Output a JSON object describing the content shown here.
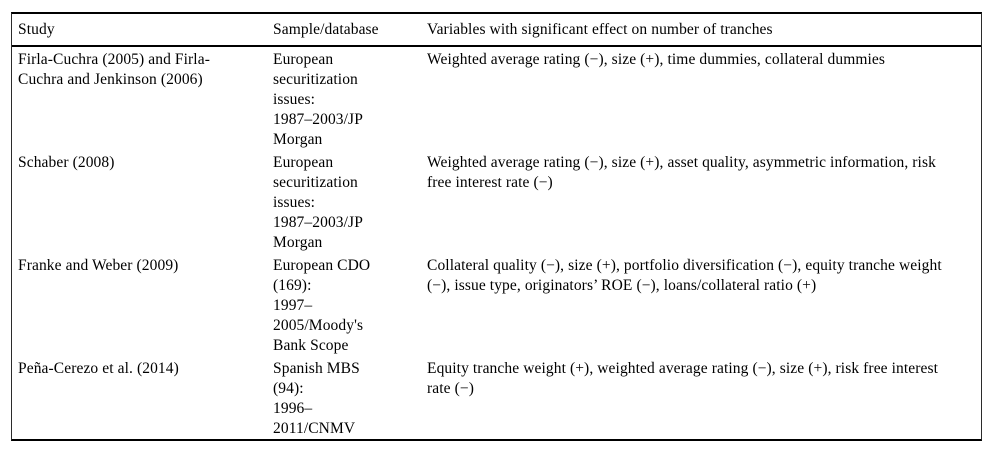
{
  "table": {
    "columns": [
      {
        "label": "Study"
      },
      {
        "label": "Sample/database"
      },
      {
        "label": "Variables with significant effect on number of tranches"
      }
    ],
    "rows": [
      {
        "study": "Firla-Cuchra (2005) and Firla-\nCuchra and Jenkinson (2006)",
        "sample": "European\nsecuritization\nissues:\n1987–2003/JP\nMorgan",
        "variables": "Weighted average rating (−), size (+), time dummies, collateral dummies"
      },
      {
        "study": "Schaber (2008)",
        "sample": "European\nsecuritization\nissues:\n1987–2003/JP\nMorgan",
        "variables": "Weighted average rating (−), size (+), asset quality, asymmetric information, risk\nfree interest rate (−)"
      },
      {
        "study": "Franke and Weber (2009)",
        "sample": "European CDO\n(169):\n1997–\n2005/Moody's\nBank Scope",
        "variables": "Collateral quality (−), size (+), portfolio diversification (−), equity tranche weight\n(−), issue type, originators’ ROE (−), loans/collateral ratio (+)"
      },
      {
        "study": "Peña-Cerezo et al. (2014)",
        "sample": "Spanish MBS\n(94):\n1996–\n2011/CNMV",
        "variables": "Equity tranche weight (+), weighted average rating (−), size (+), risk free interest\nrate (−)"
      }
    ]
  },
  "colors": {
    "background": "#ffffff",
    "text": "#000000",
    "rule": "#000000"
  }
}
